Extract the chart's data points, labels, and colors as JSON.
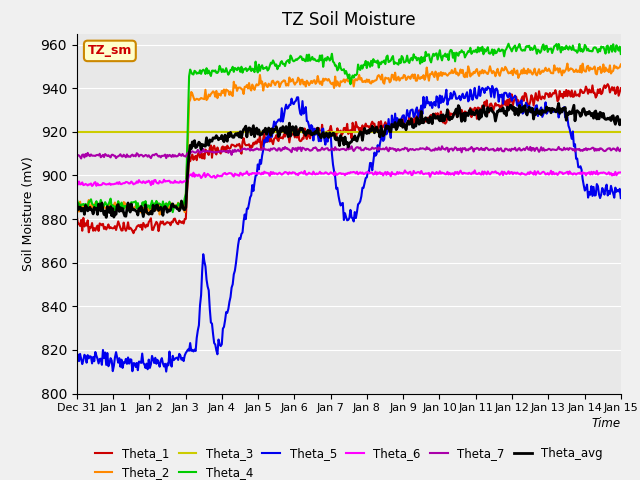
{
  "title": "TZ Soil Moisture",
  "ylabel": "Soil Moisture (mV)",
  "xlabel": "Time",
  "ylim": [
    800,
    965
  ],
  "yticks": [
    800,
    820,
    840,
    860,
    880,
    900,
    920,
    940,
    960
  ],
  "background_color": "#e8e8e8",
  "label_box": "TZ_sm",
  "x_labels": [
    "Dec 31",
    "Jan 1",
    "Jan 2",
    "Jan 3",
    "Jan 4",
    "Jan 5",
    "Jan 6",
    "Jan 7",
    "Jan 8",
    "Jan 9",
    "Jan 10",
    "Jan 11",
    "Jan 12",
    "Jan 13",
    "Jan 14",
    "Jan 15"
  ],
  "series_colors": {
    "Theta_1": "#cc0000",
    "Theta_2": "#ff8800",
    "Theta_3": "#cccc00",
    "Theta_4": "#00cc00",
    "Theta_5": "#0000ee",
    "Theta_6": "#ff00ff",
    "Theta_7": "#aa00aa",
    "Theta_avg": "#000000"
  }
}
